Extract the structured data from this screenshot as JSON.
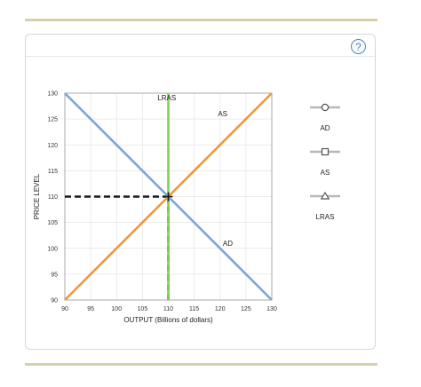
{
  "help": {
    "symbol": "?"
  },
  "chart_data": {
    "type": "line",
    "xlabel": "OUTPUT (Billions of dollars)",
    "ylabel": "PRICE LEVEL",
    "xlim": [
      90,
      130
    ],
    "ylim": [
      90,
      130
    ],
    "xticks": [
      90,
      95,
      100,
      105,
      110,
      115,
      120,
      125,
      130
    ],
    "yticks": [
      90,
      95,
      100,
      105,
      110,
      115,
      120,
      125,
      130
    ],
    "grid": true,
    "series": [
      {
        "name": "AD",
        "color": "#7ea6d4",
        "marker": "circle",
        "points": [
          [
            90,
            130
          ],
          [
            130,
            90
          ]
        ]
      },
      {
        "name": "AS",
        "color": "#f0983a",
        "marker": "square",
        "points": [
          [
            90,
            90
          ],
          [
            130,
            130
          ]
        ]
      },
      {
        "name": "LRAS",
        "color": "#7fd24e",
        "marker": "triangle",
        "points": [
          [
            110,
            90
          ],
          [
            110,
            130
          ]
        ]
      }
    ],
    "equilibrium": {
      "x": 110,
      "y": 110
    },
    "legend": {
      "placement": "right",
      "items": [
        "AD",
        "AS",
        "LRAS"
      ]
    }
  }
}
